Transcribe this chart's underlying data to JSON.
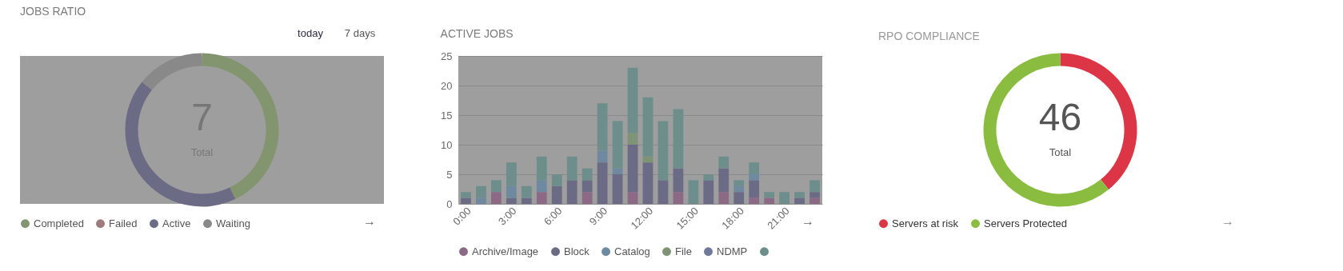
{
  "chart_data": [
    {
      "type": "donut",
      "title": "JOBS RATIO",
      "categories": [
        "Completed",
        "Failed",
        "Active",
        "Waiting"
      ],
      "values": [
        42.86,
        0,
        42.86,
        14.28
      ],
      "colors": [
        "#83956f",
        "#a0797c",
        "#6b6b86",
        "#898989"
      ],
      "legend": "bottom",
      "annotations": [
        "7",
        "Total",
        "today",
        "7 days",
        "→"
      ]
    },
    {
      "type": "bar",
      "title": "ACTIVE JOBS",
      "stacked": true,
      "categories": [
        "0:00",
        null,
        null,
        "3:00",
        null,
        null,
        "6:00",
        null,
        null,
        "9:00",
        null,
        null,
        "12:00",
        null,
        null,
        "15:00",
        null,
        null,
        "18:00",
        null,
        null,
        "21:00",
        null,
        null
      ],
      "ylim": [
        0,
        25
      ],
      "yticks": [
        0,
        5,
        10,
        15,
        20,
        25
      ],
      "grid": "y",
      "legend": "bottom",
      "series": [
        {
          "name": "Archive/Image",
          "color": "#8c6a86",
          "values": [
            0,
            0,
            2,
            0,
            0,
            2,
            0,
            0,
            2,
            0,
            0,
            2,
            0,
            0,
            2,
            0,
            0,
            2,
            0,
            1,
            1,
            0,
            0,
            1
          ]
        },
        {
          "name": "Block",
          "color": "#6b6b86",
          "values": [
            1,
            0,
            0,
            1,
            1,
            0,
            3,
            4,
            2,
            7,
            5,
            8,
            7,
            4,
            4,
            0,
            4,
            4,
            2,
            3,
            0,
            0,
            1,
            1
          ]
        },
        {
          "name": "Catalog",
          "color": "#6f8aa0",
          "values": [
            0,
            1,
            0,
            2,
            0,
            2,
            0,
            0,
            0,
            2,
            1,
            0,
            0,
            0,
            0,
            0,
            0,
            0,
            1,
            1,
            0,
            0,
            0,
            0
          ]
        },
        {
          "name": "File",
          "color": "#7f9477",
          "values": [
            0,
            0,
            0,
            0,
            0,
            0,
            0,
            0,
            0,
            0,
            0,
            2,
            1,
            0,
            0,
            0,
            0,
            0,
            0,
            0,
            0,
            0,
            0,
            0
          ]
        },
        {
          "name": "NDMP",
          "color": "#6f7a9a",
          "values": [
            0,
            0,
            0,
            0,
            0,
            0,
            0,
            0,
            0,
            0,
            0,
            0,
            0,
            0,
            0,
            0,
            0,
            0,
            0,
            0,
            0,
            0,
            0,
            0
          ]
        },
        {
          "color": "#6e8e8c",
          "values": [
            1,
            2,
            2,
            4,
            2,
            4,
            2,
            4,
            2,
            8,
            8,
            11,
            10,
            10,
            10,
            4,
            1,
            2,
            1,
            2,
            1,
            2,
            1,
            2
          ]
        }
      ],
      "annotations": [
        "→"
      ]
    },
    {
      "type": "donut",
      "title": "RPO COMPLIANCE",
      "categories": [
        "Servers at risk",
        "Servers Protected"
      ],
      "values": [
        39.13,
        60.87
      ],
      "colors": [
        "#dc3545",
        "#8abd3f"
      ],
      "legend": "bottom",
      "annotations": [
        "46",
        "Total",
        "→"
      ]
    }
  ]
}
